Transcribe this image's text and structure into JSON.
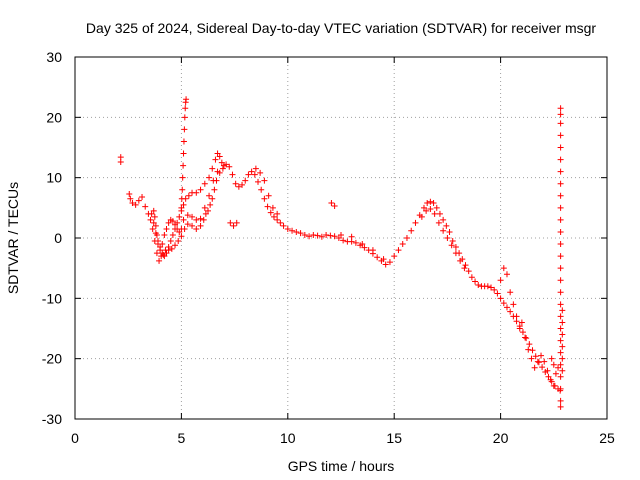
{
  "chart_data": {
    "type": "scatter",
    "title": "Day 325 of 2024, Sidereal Day-to-day VTEC variation (SDTVAR) for receiver msgr",
    "xlabel": "GPS time / hours",
    "ylabel": "SDTVAR / TECUs",
    "xlim": [
      0,
      25
    ],
    "ylim": [
      -30,
      30
    ],
    "xticks": [
      "0",
      "5",
      "10",
      "15",
      "20",
      "25"
    ],
    "yticks": [
      "-30",
      "-20",
      "-10",
      "0",
      "10",
      "20",
      "30"
    ],
    "grid": true,
    "marker": "+",
    "color": "#ff0000",
    "series": [
      {
        "name": "SDTVAR",
        "points": [
          [
            2.15,
            13.4
          ],
          [
            2.15,
            12.6
          ],
          [
            2.55,
            7.3
          ],
          [
            2.6,
            6.5
          ],
          [
            2.7,
            5.8
          ],
          [
            2.85,
            5.5
          ],
          [
            3.0,
            6.2
          ],
          [
            3.15,
            6.8
          ],
          [
            3.3,
            5.2
          ],
          [
            3.45,
            4.0
          ],
          [
            3.55,
            3.0
          ],
          [
            3.65,
            1.5
          ],
          [
            3.75,
            -0.5
          ],
          [
            3.85,
            -2.5
          ],
          [
            3.95,
            -3.8
          ],
          [
            4.05,
            -3.0
          ],
          [
            4.15,
            -2.8
          ],
          [
            4.25,
            -2.0
          ],
          [
            4.4,
            -2.0
          ],
          [
            4.55,
            -1.8
          ],
          [
            4.7,
            -1.2
          ],
          [
            4.85,
            -0.5
          ],
          [
            5.0,
            0.3
          ],
          [
            5.15,
            1.5
          ],
          [
            5.3,
            2.3
          ],
          [
            5.5,
            2.0
          ],
          [
            5.7,
            1.5
          ],
          [
            5.9,
            2.0
          ],
          [
            6.05,
            3.0
          ],
          [
            6.15,
            4.0
          ],
          [
            6.25,
            4.5
          ],
          [
            6.35,
            5.5
          ],
          [
            6.45,
            6.5
          ],
          [
            6.55,
            8.0
          ],
          [
            6.65,
            9.5
          ],
          [
            6.8,
            10.8
          ],
          [
            6.95,
            11.5
          ],
          [
            7.1,
            12.2
          ],
          [
            7.25,
            11.8
          ],
          [
            7.4,
            10.5
          ],
          [
            7.55,
            9.0
          ],
          [
            7.7,
            8.5
          ],
          [
            7.85,
            8.8
          ],
          [
            8.0,
            9.5
          ],
          [
            8.15,
            10.5
          ],
          [
            8.3,
            11.0
          ],
          [
            8.45,
            10.5
          ],
          [
            8.6,
            9.3
          ],
          [
            8.75,
            8.0
          ],
          [
            8.9,
            6.5
          ],
          [
            9.05,
            5.2
          ],
          [
            9.2,
            4.2
          ],
          [
            9.35,
            3.5
          ],
          [
            9.5,
            3.0
          ],
          [
            9.65,
            2.5
          ],
          [
            9.8,
            2.0
          ],
          [
            10.0,
            1.5
          ],
          [
            10.2,
            1.2
          ],
          [
            10.4,
            1.0
          ],
          [
            10.6,
            0.8
          ],
          [
            10.8,
            0.5
          ],
          [
            11.0,
            0.3
          ],
          [
            11.2,
            0.5
          ],
          [
            11.4,
            0.4
          ],
          [
            11.6,
            0.2
          ],
          [
            11.8,
            0.5
          ],
          [
            12.0,
            0.4
          ],
          [
            12.2,
            0.3
          ],
          [
            12.4,
            0.0
          ],
          [
            12.6,
            -0.4
          ],
          [
            12.8,
            -0.6
          ],
          [
            13.0,
            -0.6
          ],
          [
            13.2,
            -0.8
          ],
          [
            13.4,
            -1.2
          ],
          [
            13.6,
            -1.6
          ],
          [
            13.8,
            -2.0
          ],
          [
            14.0,
            -2.6
          ],
          [
            14.2,
            -3.2
          ],
          [
            14.4,
            -3.8
          ],
          [
            14.6,
            -4.4
          ],
          [
            14.8,
            -4.0
          ],
          [
            15.0,
            -3.0
          ],
          [
            15.2,
            -2.0
          ],
          [
            15.4,
            -1.0
          ],
          [
            15.6,
            0.0
          ],
          [
            15.8,
            1.2
          ],
          [
            16.0,
            2.5
          ],
          [
            16.2,
            3.8
          ],
          [
            16.4,
            5.0
          ],
          [
            16.55,
            5.8
          ],
          [
            16.7,
            6.0
          ],
          [
            16.85,
            5.8
          ],
          [
            17.0,
            5.0
          ],
          [
            17.15,
            4.0
          ],
          [
            17.3,
            3.0
          ],
          [
            17.45,
            2.0
          ],
          [
            17.6,
            1.0
          ],
          [
            17.75,
            -0.5
          ],
          [
            17.9,
            -1.5
          ],
          [
            18.05,
            -2.5
          ],
          [
            18.2,
            -3.5
          ],
          [
            18.35,
            -4.5
          ],
          [
            18.5,
            -5.5
          ],
          [
            18.65,
            -6.5
          ],
          [
            18.8,
            -7.2
          ],
          [
            18.95,
            -7.8
          ],
          [
            19.1,
            -8.0
          ],
          [
            19.25,
            -8.0
          ],
          [
            19.4,
            -8.0
          ],
          [
            19.55,
            -8.2
          ],
          [
            19.7,
            -8.6
          ],
          [
            19.85,
            -9.2
          ],
          [
            20.0,
            -10.0
          ],
          [
            20.15,
            -10.8
          ],
          [
            20.3,
            -11.5
          ],
          [
            20.45,
            -12.2
          ],
          [
            20.6,
            -13.0
          ],
          [
            20.75,
            -13.8
          ],
          [
            20.9,
            -14.6
          ],
          [
            21.05,
            -15.6
          ],
          [
            21.2,
            -16.6
          ],
          [
            21.35,
            -17.6
          ],
          [
            21.5,
            -18.6
          ],
          [
            21.65,
            -19.6
          ],
          [
            21.8,
            -20.6
          ],
          [
            21.95,
            -21.4
          ],
          [
            22.1,
            -22.2
          ],
          [
            22.25,
            -23.0
          ],
          [
            22.4,
            -23.8
          ],
          [
            22.55,
            -24.5
          ],
          [
            22.7,
            -25.0
          ],
          [
            22.8,
            -25.3
          ],
          [
            3.6,
            4.0
          ],
          [
            3.7,
            2.5
          ],
          [
            3.8,
            0.8
          ],
          [
            3.9,
            -1.0
          ],
          [
            4.0,
            -2.0
          ],
          [
            4.1,
            -1.0
          ],
          [
            4.2,
            0.5
          ],
          [
            4.3,
            1.5
          ],
          [
            4.4,
            2.5
          ],
          [
            4.5,
            3.0
          ],
          [
            4.6,
            2.8
          ],
          [
            4.7,
            2.2
          ],
          [
            4.8,
            1.5
          ],
          [
            4.9,
            1.0
          ],
          [
            5.0,
            1.5
          ],
          [
            5.1,
            3.0
          ],
          [
            5.3,
            3.8
          ],
          [
            5.5,
            3.5
          ],
          [
            5.7,
            3.0
          ],
          [
            5.9,
            3.2
          ],
          [
            6.1,
            5.0
          ],
          [
            6.3,
            7.0
          ],
          [
            6.5,
            9.5
          ],
          [
            6.7,
            11.0
          ],
          [
            6.9,
            12.5
          ],
          [
            7.0,
            12.0
          ],
          [
            3.7,
            4.5
          ],
          [
            3.75,
            3.5
          ],
          [
            3.8,
            2.0
          ],
          [
            3.85,
            0.5
          ],
          [
            3.9,
            -0.5
          ],
          [
            4.0,
            -1.5
          ],
          [
            4.1,
            -2.5
          ],
          [
            4.2,
            -3.0
          ],
          [
            4.3,
            -2.5
          ],
          [
            4.4,
            -1.5
          ],
          [
            4.5,
            -0.5
          ],
          [
            4.6,
            0.5
          ],
          [
            4.7,
            1.5
          ],
          [
            4.8,
            2.5
          ],
          [
            4.9,
            3.5
          ],
          [
            5.0,
            4.5
          ],
          [
            5.1,
            5.5
          ],
          [
            5.2,
            6.5
          ],
          [
            5.35,
            7.0
          ],
          [
            5.5,
            7.5
          ],
          [
            5.7,
            7.5
          ],
          [
            5.9,
            8.0
          ],
          [
            6.1,
            9.0
          ],
          [
            6.3,
            10.0
          ],
          [
            6.45,
            11.5
          ],
          [
            6.6,
            13.0
          ],
          [
            6.7,
            14.0
          ],
          [
            6.8,
            13.5
          ],
          [
            5.0,
            5.0
          ],
          [
            5.02,
            6.5
          ],
          [
            5.04,
            8.0
          ],
          [
            5.06,
            10.0
          ],
          [
            5.08,
            12.0
          ],
          [
            5.1,
            14.0
          ],
          [
            5.12,
            16.0
          ],
          [
            5.14,
            18.0
          ],
          [
            5.16,
            20.0
          ],
          [
            5.18,
            21.5
          ],
          [
            5.2,
            22.5
          ],
          [
            5.22,
            23.0
          ],
          [
            7.3,
            2.5
          ],
          [
            7.45,
            2.0
          ],
          [
            7.6,
            2.5
          ],
          [
            8.5,
            11.5
          ],
          [
            8.7,
            10.8
          ],
          [
            8.9,
            9.5
          ],
          [
            9.1,
            7.0
          ],
          [
            9.3,
            5.0
          ],
          [
            9.5,
            4.0
          ],
          [
            12.05,
            5.8
          ],
          [
            12.2,
            5.3
          ],
          [
            12.5,
            0.5
          ],
          [
            13.0,
            0.2
          ],
          [
            13.5,
            -1.0
          ],
          [
            14.0,
            -2.0
          ],
          [
            14.5,
            -3.5
          ],
          [
            16.3,
            3.5
          ],
          [
            16.5,
            4.5
          ],
          [
            16.7,
            4.8
          ],
          [
            16.9,
            4.0
          ],
          [
            17.1,
            2.5
          ],
          [
            17.3,
            1.2
          ],
          [
            17.5,
            0.0
          ],
          [
            17.7,
            -1.2
          ],
          [
            17.9,
            -2.5
          ],
          [
            18.1,
            -3.8
          ],
          [
            18.3,
            -5.0
          ],
          [
            20.0,
            -7.0
          ],
          [
            20.15,
            -5.0
          ],
          [
            20.3,
            -6.0
          ],
          [
            20.45,
            -9.0
          ],
          [
            20.6,
            -11.0
          ],
          [
            20.75,
            -13.0
          ],
          [
            20.9,
            -15.0
          ],
          [
            21.0,
            -14.0
          ],
          [
            21.15,
            -16.5
          ],
          [
            21.3,
            -18.5
          ],
          [
            21.45,
            -20.0
          ],
          [
            21.6,
            -21.5
          ],
          [
            21.75,
            -20.5
          ],
          [
            21.9,
            -19.5
          ],
          [
            22.05,
            -20.5
          ],
          [
            22.2,
            -22.0
          ],
          [
            22.35,
            -23.5
          ],
          [
            22.5,
            -24.5
          ],
          [
            22.82,
            21.5
          ],
          [
            22.82,
            20.5
          ],
          [
            22.82,
            19.0
          ],
          [
            22.82,
            17.0
          ],
          [
            22.82,
            15.0
          ],
          [
            22.82,
            13.0
          ],
          [
            22.82,
            11.0
          ],
          [
            22.82,
            9.0
          ],
          [
            22.82,
            7.0
          ],
          [
            22.82,
            5.0
          ],
          [
            22.82,
            3.0
          ],
          [
            22.82,
            1.0
          ],
          [
            22.82,
            -1.0
          ],
          [
            22.82,
            -3.0
          ],
          [
            22.82,
            -5.0
          ],
          [
            22.82,
            -7.0
          ],
          [
            22.82,
            -9.0
          ],
          [
            22.82,
            -11.0
          ],
          [
            22.82,
            -13.0
          ],
          [
            22.82,
            -15.0
          ],
          [
            22.82,
            -17.0
          ],
          [
            22.82,
            -19.0
          ],
          [
            22.82,
            -21.0
          ],
          [
            22.82,
            -23.0
          ],
          [
            22.82,
            -25.0
          ],
          [
            22.82,
            -27.0
          ],
          [
            22.82,
            -28.0
          ],
          [
            22.9,
            -12.0
          ],
          [
            22.9,
            -14.0
          ],
          [
            22.9,
            -16.0
          ],
          [
            22.9,
            -18.0
          ],
          [
            22.9,
            -20.0
          ],
          [
            22.9,
            -22.0
          ],
          [
            22.7,
            -21.5
          ],
          [
            22.6,
            -22.5
          ],
          [
            22.5,
            -21.0
          ],
          [
            22.4,
            -20.0
          ]
        ]
      }
    ]
  }
}
